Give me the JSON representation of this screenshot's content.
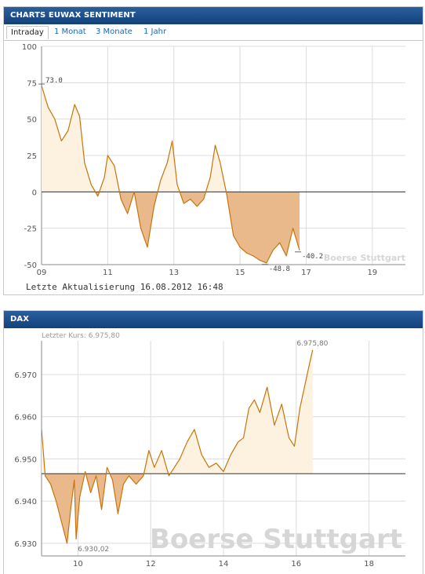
{
  "panel1": {
    "title": "CHARTS EUWAX SENTIMENT",
    "tabs": [
      {
        "label": "Intraday",
        "active": true
      },
      {
        "label": "1 Monat",
        "active": false
      },
      {
        "label": "3 Monate",
        "active": false
      },
      {
        "label": "1 Jahr",
        "active": false
      }
    ],
    "footer": "Letzte Aktualisierung 16.08.2012 16:48",
    "watermark": "Boerse Stuttgart"
  },
  "panel2": {
    "title": "DAX",
    "last_price_label": "Letzter Kurs: 6.975,80",
    "watermark": "Boerse Stuttgart"
  },
  "colors": {
    "header_bg": "#1d4e8a",
    "line": "#c8740a",
    "fill_above": "#fdf1e0",
    "fill_below": "#e9b98b",
    "grid": "#dcdcdc"
  },
  "chart_data": [
    {
      "type": "area",
      "title": "CHARTS EUWAX SENTIMENT",
      "x_ticks": [
        "09",
        "11",
        "13",
        "15",
        "17",
        "19"
      ],
      "y_ticks": [
        "100",
        "75",
        "50",
        "25",
        "0",
        "-25",
        "-50"
      ],
      "xlim": [
        9,
        20
      ],
      "ylim": [
        -50,
        100
      ],
      "baseline": 0,
      "grid": true,
      "annotations": [
        {
          "label": "73.0",
          "x": 9.05,
          "y": 73.0
        },
        {
          "label": "-48.8",
          "x": 15.8,
          "y": -48.8
        },
        {
          "label": "-40.2",
          "x": 16.8,
          "y": -40.2
        }
      ],
      "x": [
        9.0,
        9.2,
        9.4,
        9.6,
        9.8,
        10.0,
        10.15,
        10.3,
        10.5,
        10.7,
        10.9,
        11.0,
        11.2,
        11.4,
        11.6,
        11.8,
        12.0,
        12.2,
        12.4,
        12.6,
        12.8,
        12.95,
        13.1,
        13.3,
        13.5,
        13.7,
        13.9,
        14.1,
        14.25,
        14.4,
        14.6,
        14.8,
        15.0,
        15.2,
        15.4,
        15.6,
        15.8,
        16.0,
        16.2,
        16.4,
        16.6,
        16.8
      ],
      "y": [
        73,
        58,
        50,
        35,
        42,
        60,
        52,
        20,
        5,
        -3,
        10,
        25,
        18,
        -5,
        -15,
        0,
        -25,
        -38,
        -10,
        8,
        20,
        35,
        5,
        -8,
        -5,
        -10,
        -5,
        10,
        32,
        20,
        -2,
        -30,
        -38,
        -42,
        -44,
        -47,
        -48.8,
        -40,
        -35,
        -44,
        -25,
        -40.2
      ]
    },
    {
      "type": "area",
      "title": "DAX",
      "x_ticks": [
        "10",
        "12",
        "14",
        "16",
        "18"
      ],
      "y_ticks": [
        "6.970",
        "6.960",
        "6.950",
        "6.940",
        "6.930"
      ],
      "xlim": [
        9,
        19
      ],
      "ylim": [
        6.927,
        6.978
      ],
      "baseline": 6.9465,
      "grid": true,
      "annotations": [
        {
          "label": "6.975,80",
          "x": 16.4,
          "y": 6.9758
        },
        {
          "label": "6.930,02",
          "x": 9.95,
          "y": 6.93002
        }
      ],
      "x": [
        9.0,
        9.1,
        9.25,
        9.4,
        9.55,
        9.7,
        9.8,
        9.9,
        9.95,
        10.05,
        10.2,
        10.35,
        10.5,
        10.65,
        10.8,
        10.95,
        11.1,
        11.25,
        11.4,
        11.6,
        11.8,
        11.95,
        12.1,
        12.3,
        12.5,
        12.65,
        12.8,
        13.0,
        13.2,
        13.4,
        13.6,
        13.8,
        14.0,
        14.2,
        14.4,
        14.55,
        14.7,
        14.85,
        15.0,
        15.2,
        15.4,
        15.6,
        15.8,
        15.95,
        16.1,
        16.25,
        16.35,
        16.45
      ],
      "y": [
        6.957,
        6.946,
        6.944,
        6.94,
        6.935,
        6.93,
        6.938,
        6.945,
        6.931,
        6.941,
        6.947,
        6.942,
        6.946,
        6.938,
        6.948,
        6.945,
        6.937,
        6.944,
        6.946,
        6.944,
        6.946,
        6.952,
        6.948,
        6.952,
        6.946,
        6.948,
        6.95,
        6.954,
        6.957,
        6.951,
        6.948,
        6.949,
        6.947,
        6.951,
        6.954,
        6.955,
        6.962,
        6.964,
        6.961,
        6.967,
        6.958,
        6.963,
        6.955,
        6.953,
        6.962,
        6.968,
        6.972,
        6.9758
      ]
    }
  ]
}
